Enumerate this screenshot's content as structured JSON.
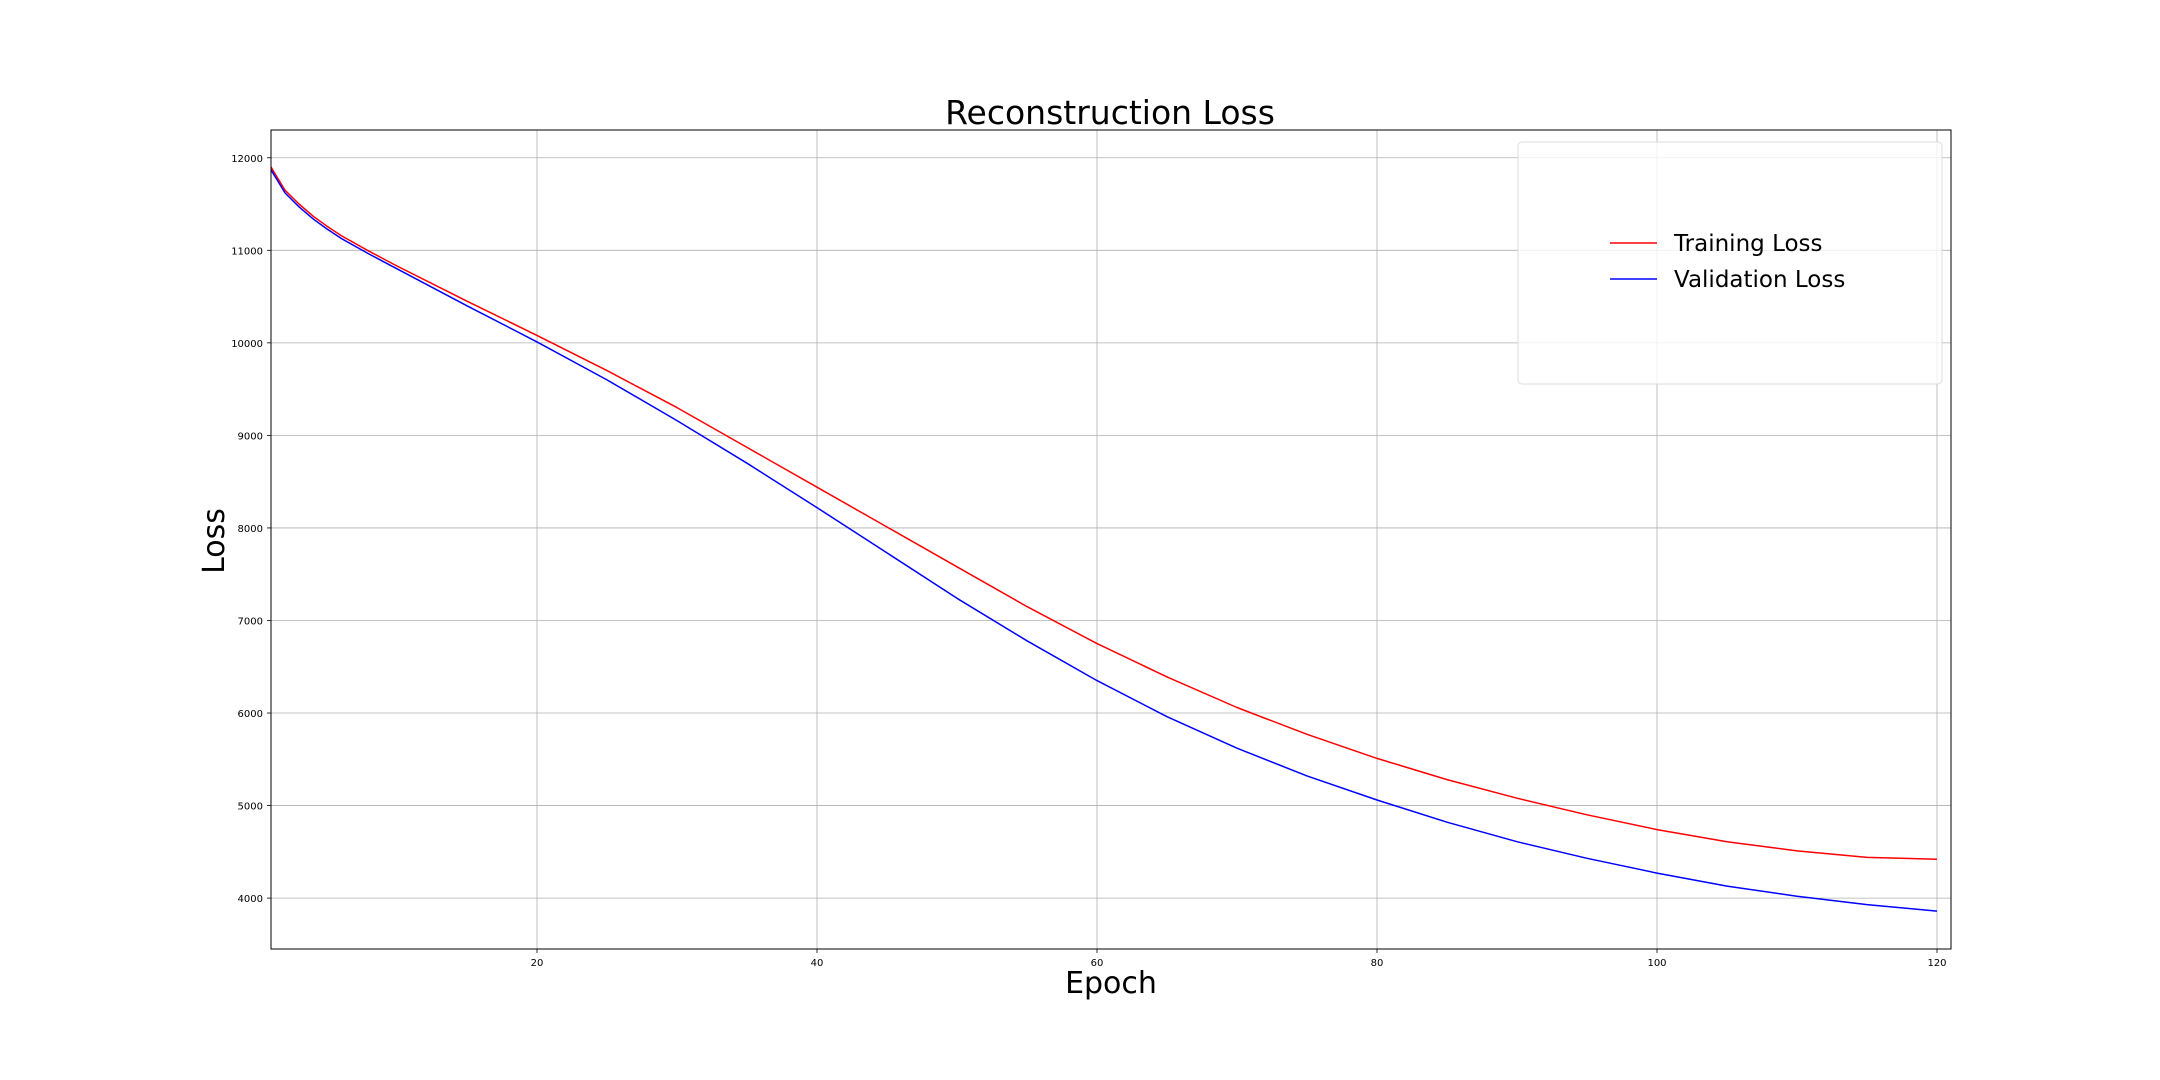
{
  "chart_data": {
    "type": "line",
    "title": "Reconstruction Loss",
    "xlabel": "Epoch",
    "ylabel": "Loss",
    "xlim": [
      1,
      121
    ],
    "ylim": [
      3450,
      12300
    ],
    "xticks": [
      20,
      40,
      60,
      80,
      100,
      120
    ],
    "yticks": [
      4000,
      5000,
      6000,
      7000,
      8000,
      9000,
      10000,
      11000,
      12000
    ],
    "grid": true,
    "legend_position": "top-right",
    "series": [
      {
        "name": "Training Loss",
        "color": "#ff0000",
        "x": [
          1,
          2,
          3,
          4,
          5,
          6,
          8,
          10,
          15,
          20,
          25,
          30,
          35,
          40,
          45,
          50,
          55,
          60,
          65,
          70,
          75,
          80,
          85,
          90,
          95,
          100,
          105,
          110,
          115,
          120
        ],
        "y": [
          11900,
          11650,
          11500,
          11370,
          11260,
          11160,
          10990,
          10830,
          10450,
          10080,
          9700,
          9300,
          8870,
          8440,
          8010,
          7580,
          7150,
          6750,
          6390,
          6060,
          5770,
          5510,
          5280,
          5080,
          4900,
          4740,
          4610,
          4510,
          4440,
          4420
        ]
      },
      {
        "name": "Validation Loss",
        "color": "#0000ff",
        "x": [
          1,
          2,
          3,
          4,
          5,
          6,
          8,
          10,
          15,
          20,
          25,
          30,
          35,
          40,
          45,
          50,
          55,
          60,
          65,
          70,
          75,
          80,
          85,
          90,
          95,
          100,
          105,
          110,
          115,
          120
        ],
        "y": [
          11870,
          11620,
          11470,
          11340,
          11230,
          11130,
          10960,
          10800,
          10400,
          10010,
          9600,
          9160,
          8700,
          8220,
          7730,
          7240,
          6780,
          6350,
          5960,
          5620,
          5320,
          5060,
          4820,
          4610,
          4430,
          4270,
          4130,
          4020,
          3930,
          3860
        ]
      }
    ]
  }
}
